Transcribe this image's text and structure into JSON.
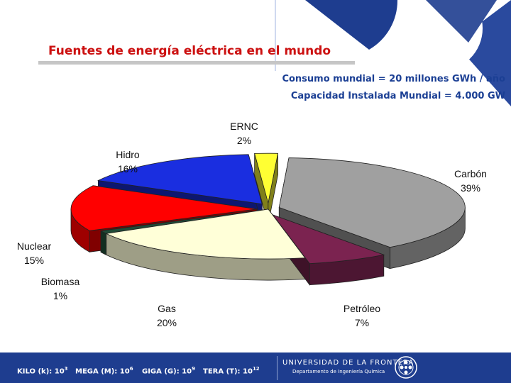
{
  "title": "Fuentes de energía eléctrica en el mundo",
  "stats": {
    "consumption": "Consumo mundial = 20 millones GWh / año",
    "capacity": "Capacidad Instalada Mundial = 4.000 GW"
  },
  "chart_data": {
    "type": "pie",
    "title": "",
    "slices": [
      {
        "name": "Carbón",
        "value": 39,
        "color": "#a0a0a0",
        "exploded": true
      },
      {
        "name": "Petróleo",
        "value": 7,
        "color": "#7b2350",
        "exploded": true
      },
      {
        "name": "Gas",
        "value": 20,
        "color": "#ffffd8",
        "exploded": false
      },
      {
        "name": "Biomasa",
        "value": 1,
        "color": "#1f4a36",
        "exploded": false
      },
      {
        "name": "Nuclear",
        "value": 15,
        "color": "#ff0000",
        "exploded": true
      },
      {
        "name": "Hidro",
        "value": 16,
        "color": "#1a2ee0",
        "exploded": true
      },
      {
        "name": "ERNC",
        "value": 2,
        "color": "#ffff33",
        "exploded": true
      }
    ],
    "labels": [
      {
        "name": "Carbón",
        "pct": "39%"
      },
      {
        "name": "Petróleo",
        "pct": "7%"
      },
      {
        "name": "Gas",
        "pct": "20%"
      },
      {
        "name": "Biomasa",
        "pct": "1%"
      },
      {
        "name": "Nuclear",
        "pct": "15%"
      },
      {
        "name": "Hidro",
        "pct": "16%"
      },
      {
        "name": "ERNC",
        "pct": "2%"
      }
    ],
    "three_d": true
  },
  "footer": {
    "units": [
      {
        "text": "KILO (k): 10",
        "exp": "3"
      },
      {
        "text": "MEGA (M): 10",
        "exp": "6"
      },
      {
        "text": "GIGA (G): 10",
        "exp": "9"
      },
      {
        "text": "TERA (T): 10",
        "exp": "12"
      }
    ],
    "university": "UNIVERSIDAD DE LA FRONTERA",
    "department": "Departamento de Ingeniería Química"
  },
  "colors": {
    "title": "#cc1111",
    "stats": "#1b3f94",
    "footer_bg": "#1e3d8f"
  }
}
